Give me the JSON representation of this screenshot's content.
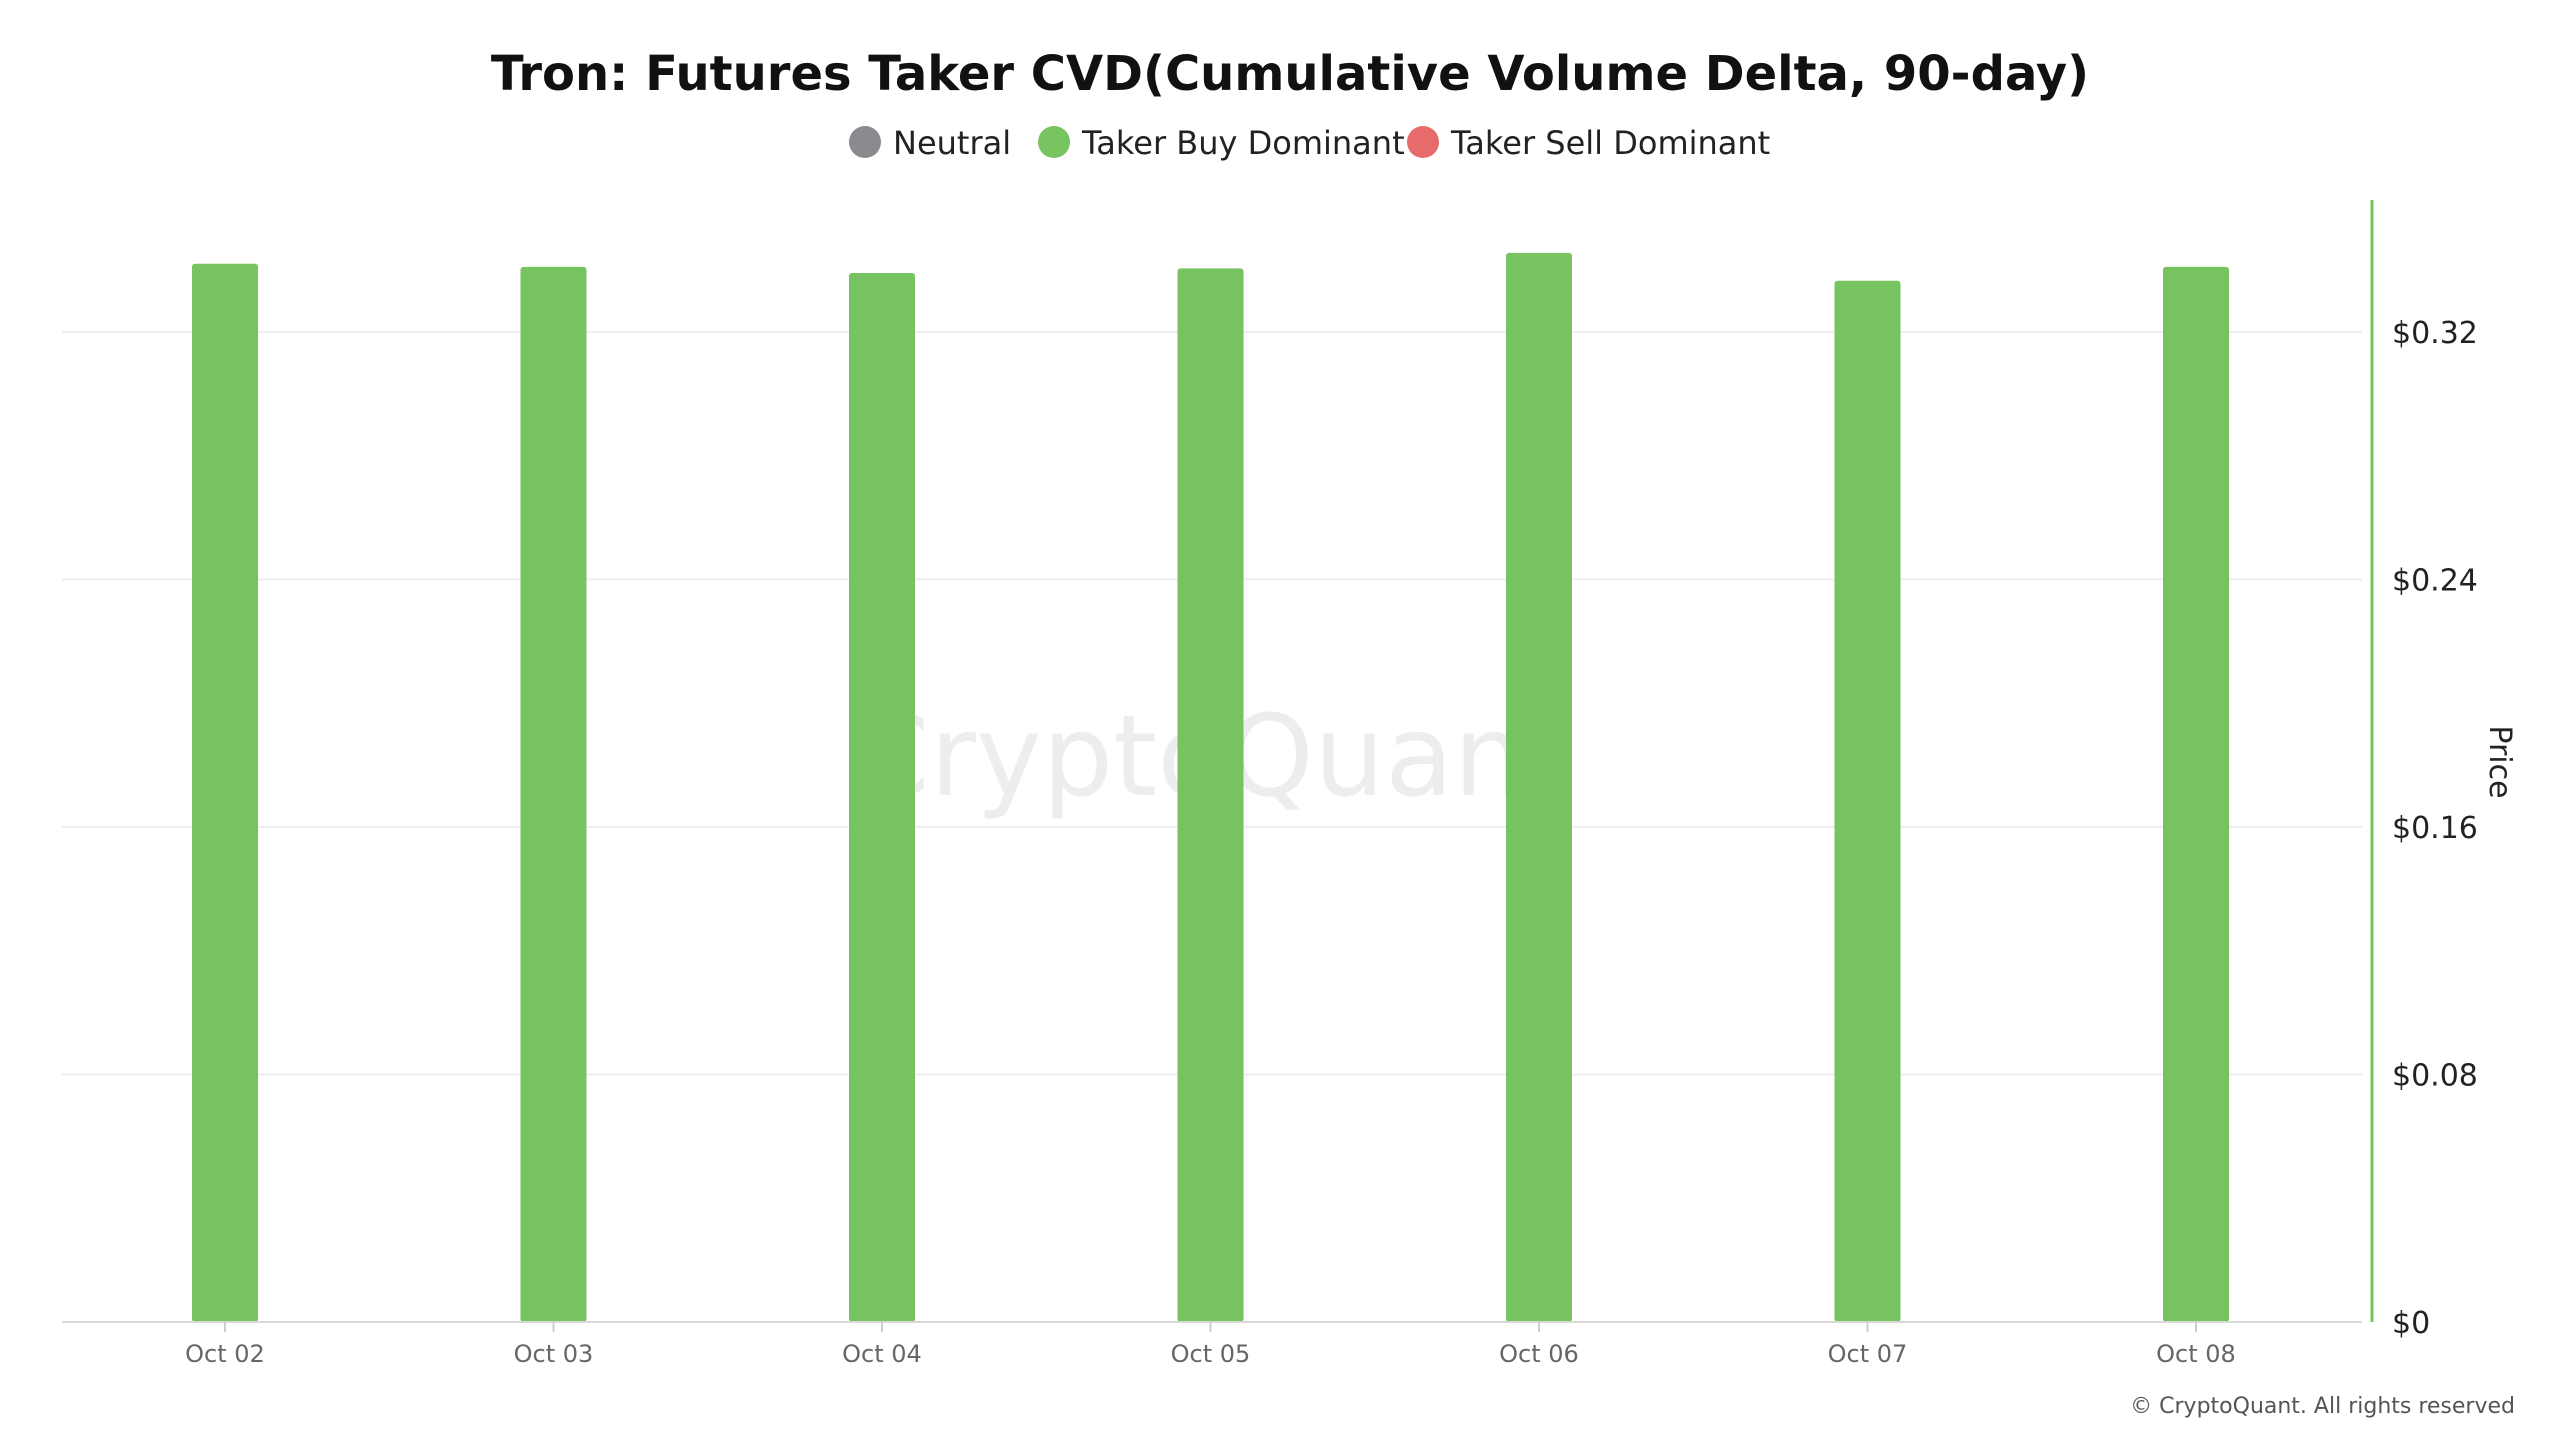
{
  "chart_data": {
    "type": "bar",
    "title": "Tron: Futures Taker CVD(Cumulative Volume Delta, 90-day)",
    "categories": [
      "Oct 02",
      "Oct 03",
      "Oct 04",
      "Oct 05",
      "Oct 06",
      "Oct 07",
      "Oct 08"
    ],
    "series": [
      {
        "name": "Taker Buy Dominant",
        "color": "#76C35F",
        "values": [
          0.342,
          0.341,
          0.339,
          0.3405,
          0.3455,
          0.3365,
          0.341
        ]
      }
    ],
    "legend": {
      "placement": "top-center",
      "items": [
        {
          "label": "Neutral",
          "color": "#8A8A8F"
        },
        {
          "label": "Taker Buy Dominant",
          "color": "#76C35F"
        },
        {
          "label": "Taker Sell Dominant",
          "color": "#E86B6B"
        }
      ]
    },
    "ylabel": "Price",
    "y_axis_side": "right",
    "y_axis_line_color": "#76C35F",
    "ylim": [
      0,
      0.3626
    ],
    "yticks": [
      0,
      0.08,
      0.16,
      0.24,
      0.32
    ],
    "ytick_labels": [
      "$0",
      "$0.08",
      "$0.16",
      "$0.24",
      "$0.32"
    ],
    "grid": true
  },
  "watermark": "CryptoQuant",
  "copyright": "© CryptoQuant. All rights reserved"
}
